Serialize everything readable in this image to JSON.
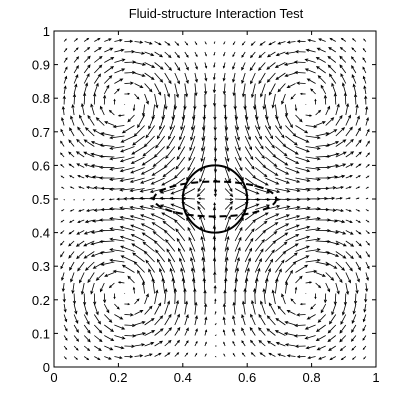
{
  "chart_data": {
    "type": "quiver",
    "title": "Fluid-structure Interaction Test",
    "xlabel": "",
    "ylabel": "",
    "xlim": [
      0,
      1
    ],
    "ylim": [
      0,
      1
    ],
    "x_ticks": [
      "0",
      "0.2",
      "0.4",
      "0.6",
      "0.8",
      "1"
    ],
    "y_ticks": [
      "0",
      "0.1",
      "0.2",
      "0.3",
      "0.4",
      "0.5",
      "0.6",
      "0.7",
      "0.8",
      "0.9",
      "1"
    ],
    "grid": false,
    "velocity_field": {
      "x_start": 0.03125,
      "y_start": 0.03125,
      "spacing": 0.03125,
      "count": 31,
      "pattern": "expansion along the x-axis through (0.5, 0.5), compression along the y-axis, recirculating cells in the four quadrants"
    },
    "structures": [
      {
        "name": "circle",
        "cx": 0.5,
        "cy": 0.5,
        "rx": 0.1,
        "ry": 0.1,
        "line": "solid"
      },
      {
        "name": "ellipse",
        "cx": 0.5,
        "cy": 0.5,
        "rx": 0.19,
        "ry": 0.052,
        "line": "dashed"
      }
    ],
    "colors": {
      "arrows": "#000000",
      "axes": "#000000",
      "background": "#ffffff"
    }
  }
}
